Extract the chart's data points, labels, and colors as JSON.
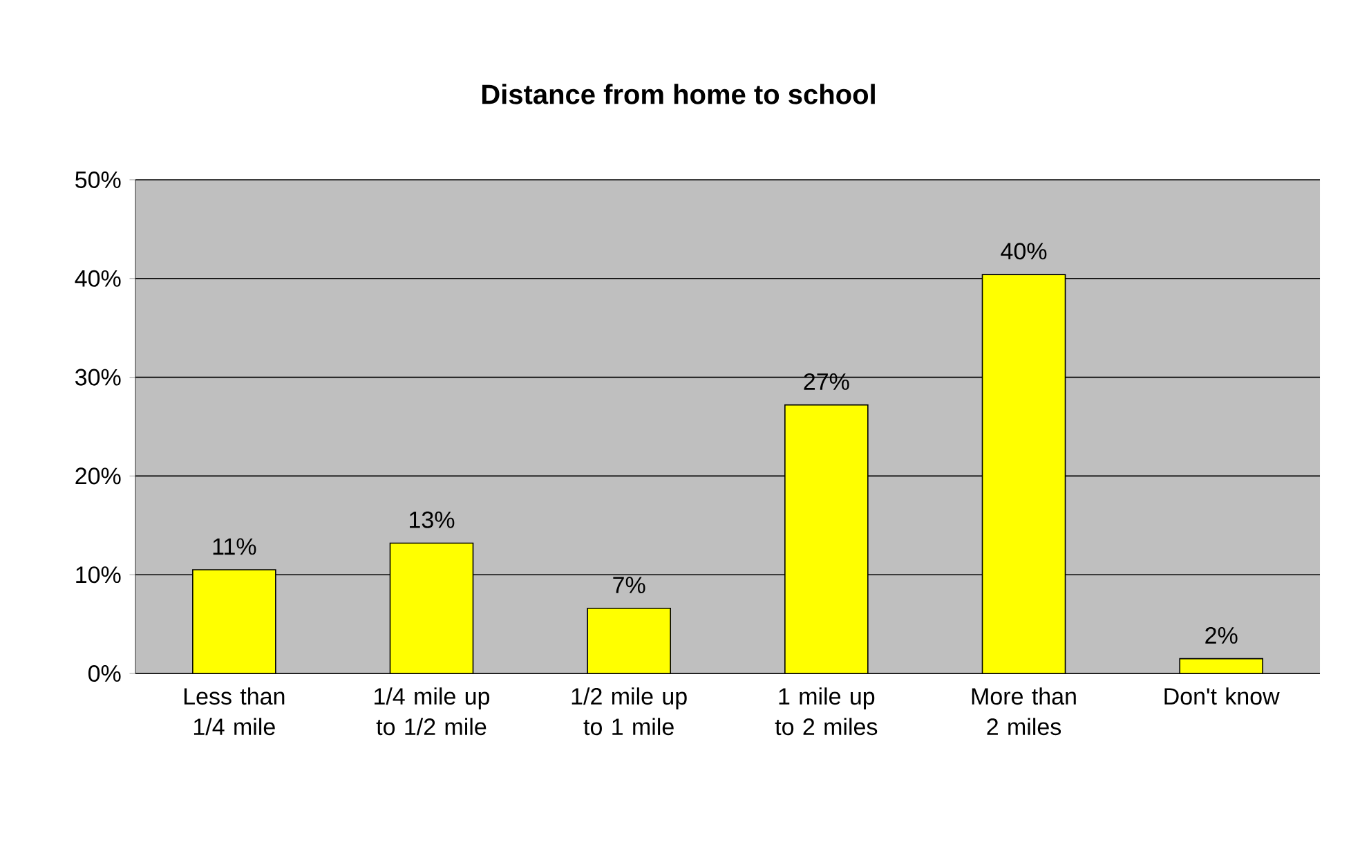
{
  "chart_data": {
    "type": "bar",
    "title": "Distance from home to school",
    "categories": [
      "Less than 1/4 mile",
      "1/4 mile up to 1/2 mile",
      "1/2 mile up to 1 mile",
      "1 mile up to 2 miles",
      "More than 2 miles",
      "Don't know"
    ],
    "values": [
      10.5,
      13.2,
      6.6,
      27.2,
      40.4,
      1.5
    ],
    "value_labels": [
      "11%",
      "13%",
      "7%",
      "27%",
      "40%",
      "2%"
    ],
    "color": "#ffff00",
    "ylim": [
      0,
      50
    ],
    "yticks": [
      {
        "value": 0,
        "label": "0%"
      },
      {
        "value": 10,
        "label": "10%"
      },
      {
        "value": 20,
        "label": "20%"
      },
      {
        "value": 30,
        "label": "30%"
      },
      {
        "value": 40,
        "label": "40%"
      },
      {
        "value": 50,
        "label": "50%"
      }
    ],
    "grid": "y"
  }
}
